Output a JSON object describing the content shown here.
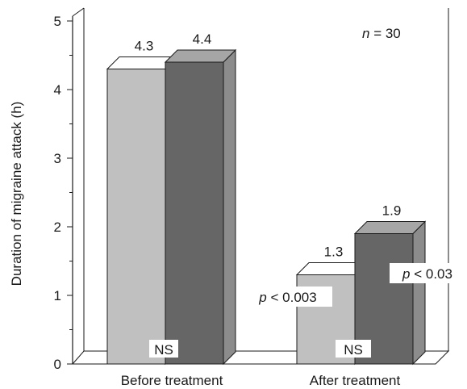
{
  "chart_data": {
    "type": "bar",
    "style": "3d",
    "categories": [
      "Before treatment",
      "After treatment"
    ],
    "series": [
      {
        "values": [
          4.3,
          1.3
        ],
        "front_color": "#c0c0c0",
        "top_color": "#ffffff",
        "side_color": "#9a9a9a"
      },
      {
        "values": [
          4.4,
          1.9
        ],
        "front_color": "#666666",
        "top_color": "#a6a6a6",
        "side_color": "#8c8c8c"
      }
    ],
    "value_labels": [
      "4.3",
      "4.4",
      "1.3",
      "1.9"
    ],
    "title": "",
    "xlabel": "",
    "ylabel": "Duration of migraine attack (h)",
    "ylim": [
      0,
      5
    ],
    "y_ticks": [
      "0",
      "1",
      "2",
      "3",
      "4",
      "5"
    ],
    "grid": false,
    "legend": "none",
    "annotations": {
      "n_prefix": "n",
      "n_suffix": " = 30",
      "before_ns": "NS",
      "after_ns": "NS",
      "p_light_prefix": "p",
      "p_light_suffix": " < 0.003",
      "p_dark_prefix": "p",
      "p_dark_suffix": " < 0.03"
    }
  }
}
